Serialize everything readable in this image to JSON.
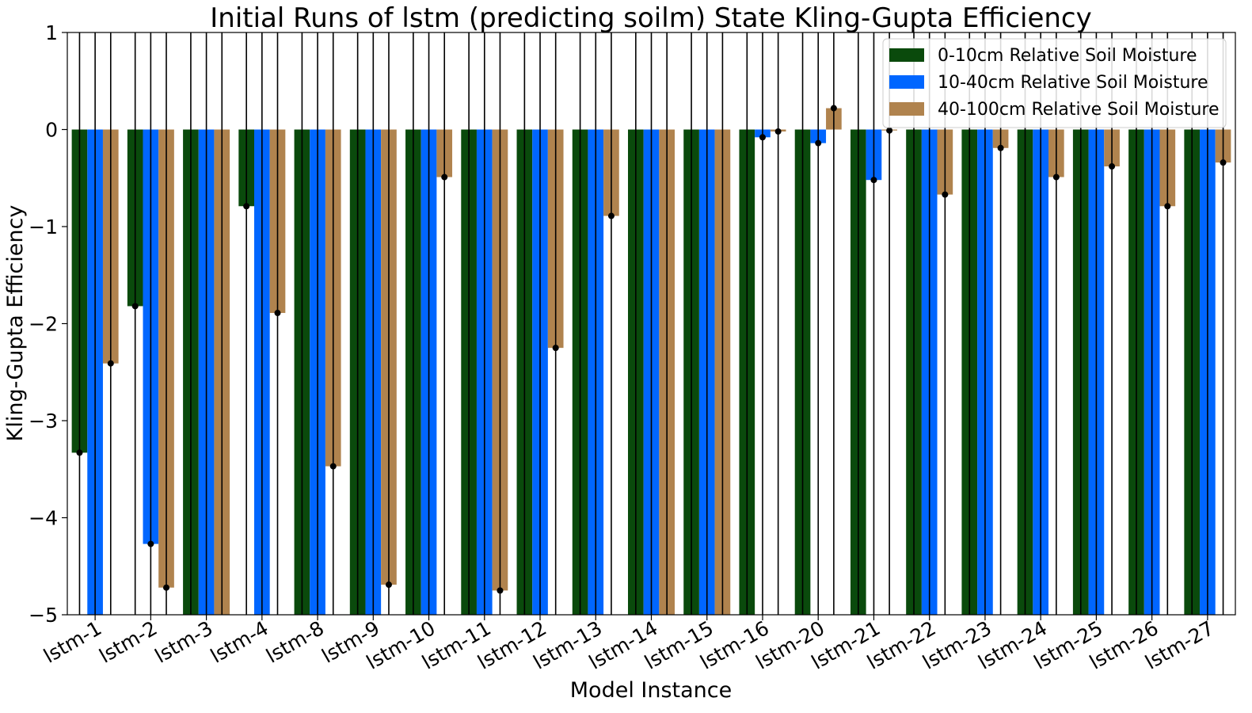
{
  "chart_data": {
    "type": "bar",
    "title": "Initial Runs of lstm (predicting soilm) State Kling-Gupta Efficiency",
    "xlabel": "Model Instance",
    "ylabel": "Kling-Gupta Efficiency",
    "ylim": [
      -5,
      1
    ],
    "yticks": [
      1,
      0,
      -1,
      -2,
      -3,
      -4,
      -5
    ],
    "ytick_labels": [
      "1",
      "0",
      "−1",
      "−2",
      "−3",
      "−4",
      "−5"
    ],
    "legend_position": "top-right",
    "grid": false,
    "error_bars": true,
    "categories": [
      "lstm-1",
      "lstm-2",
      "lstm-3",
      "lstm-4",
      "lstm-8",
      "lstm-9",
      "lstm-10",
      "lstm-11",
      "lstm-12",
      "lstm-13",
      "lstm-14",
      "lstm-15",
      "lstm-16",
      "lstm-20",
      "lstm-21",
      "lstm-22",
      "lstm-23",
      "lstm-24",
      "lstm-25",
      "lstm-26",
      "lstm-27"
    ],
    "series": [
      {
        "name": "0-10cm Relative Soil Moisture",
        "color": "#0a4a0c",
        "values": [
          -3.33,
          -1.82,
          -5,
          -0.79,
          -5,
          -5,
          -5,
          -5,
          -5,
          -5,
          -5,
          -5,
          -5,
          -5,
          -5,
          -5,
          -5,
          -5,
          -5,
          -5,
          -5
        ]
      },
      {
        "name": "10-40cm Relative Soil Moisture",
        "color": "#0066ff",
        "values": [
          -5,
          -4.27,
          -5,
          -5,
          -5,
          -5,
          -5,
          -5,
          -5,
          -5,
          -5,
          -5,
          -0.08,
          -0.14,
          -0.52,
          -5,
          -5,
          -5,
          -5,
          -5,
          -5
        ]
      },
      {
        "name": "40-100cm Relative Soil Moisture",
        "color": "#b0834e",
        "values": [
          -2.41,
          -4.72,
          -5,
          -1.89,
          -3.47,
          -4.69,
          -0.49,
          -4.75,
          -2.25,
          -0.89,
          -5,
          -5,
          -0.02,
          0.22,
          -0.01,
          -0.67,
          -0.19,
          -0.49,
          -0.38,
          -0.79,
          -0.34
        ]
      }
    ]
  }
}
